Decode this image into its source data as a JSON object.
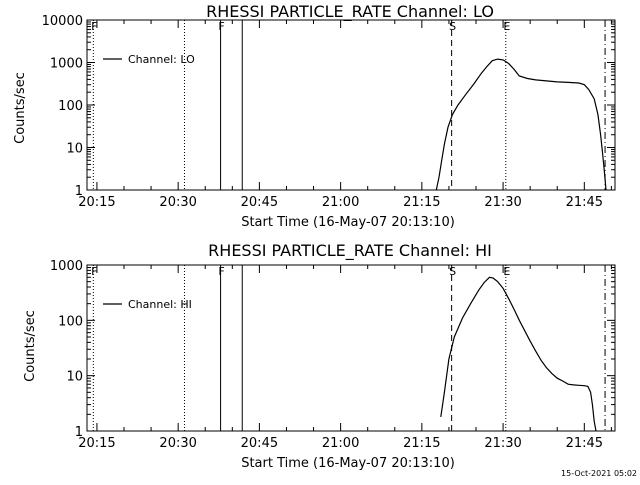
{
  "footer_timestamp": "15-Oct-2021 05:02",
  "chart_data": [
    {
      "type": "line",
      "title": "RHESSI PARTICLE_RATE Channel: LO",
      "xlabel": "Start Time (16-May-07 20:13:10)",
      "ylabel": "Counts/sec",
      "y_scale": "log",
      "xlim": [
        "20:13:10",
        "21:50:40"
      ],
      "ylim": [
        1,
        10000
      ],
      "x_ticks": [
        "20:15",
        "20:30",
        "20:45",
        "21:00",
        "21:15",
        "21:30",
        "21:45"
      ],
      "y_ticks": [
        "1",
        "10",
        "100",
        "1000",
        "10000"
      ],
      "legend": {
        "placement": "top-left",
        "entries": [
          "Channel: LO"
        ]
      },
      "series": [
        {
          "name": "Channel: LO",
          "x": [
            "21:17:40",
            "21:18:10",
            "21:18:40",
            "21:19:10",
            "21:19:50",
            "21:20:40",
            "21:21:40",
            "21:23:00",
            "21:24:40",
            "21:26:00",
            "21:27:00",
            "21:28:00",
            "21:29:00",
            "21:30:00",
            "21:31:00",
            "21:32:00",
            "21:33:00",
            "21:34:30",
            "21:36:00",
            "21:38:00",
            "21:40:00",
            "21:42:00",
            "21:44:00",
            "21:45:00",
            "21:45:50",
            "21:46:50",
            "21:47:30",
            "21:48:00",
            "21:48:20",
            "21:48:40",
            "21:49:00"
          ],
          "y": [
            1,
            2,
            5,
            12,
            30,
            60,
            100,
            170,
            320,
            560,
            800,
            1100,
            1200,
            1150,
            950,
            700,
            480,
            420,
            390,
            370,
            350,
            340,
            330,
            300,
            230,
            140,
            60,
            20,
            8,
            3,
            1
          ]
        }
      ],
      "markers": [
        {
          "label": "F",
          "time": "20:14:20",
          "style": "dotted"
        },
        {
          "label": "",
          "time": "20:31:10",
          "style": "dotted"
        },
        {
          "label": "F",
          "time": "20:37:50",
          "style": "solid"
        },
        {
          "label": "",
          "time": "20:41:50",
          "style": "solid"
        },
        {
          "label": "S",
          "time": "21:20:30",
          "style": "dashed"
        },
        {
          "label": "E",
          "time": "21:30:30",
          "style": "dotted"
        },
        {
          "label": "",
          "time": "21:48:50",
          "style": "dash-dot"
        }
      ]
    },
    {
      "type": "line",
      "title": "RHESSI PARTICLE_RATE Channel: HI",
      "xlabel": "Start Time (16-May-07 20:13:10)",
      "ylabel": "Counts/sec",
      "y_scale": "log",
      "xlim": [
        "20:13:10",
        "21:50:40"
      ],
      "ylim": [
        1,
        1000
      ],
      "x_ticks": [
        "20:15",
        "20:30",
        "20:45",
        "21:00",
        "21:15",
        "21:30",
        "21:45"
      ],
      "y_ticks": [
        "1",
        "10",
        "100",
        "1000"
      ],
      "legend": {
        "placement": "top-left",
        "entries": [
          "Channel: HI"
        ]
      },
      "series": [
        {
          "name": "Channel: HI",
          "x": [
            "21:18:30",
            "21:19:10",
            "21:20:00",
            "21:21:00",
            "21:22:30",
            "21:24:00",
            "21:25:30",
            "21:26:30",
            "21:27:30",
            "21:28:10",
            "21:29:00",
            "21:30:00",
            "21:31:00",
            "21:32:00",
            "21:33:00",
            "21:34:00",
            "21:35:00",
            "21:36:00",
            "21:37:00",
            "21:38:00",
            "21:39:00",
            "21:40:00",
            "21:41:00",
            "21:42:00",
            "21:43:00",
            "21:44:00",
            "21:45:00",
            "21:45:40",
            "21:46:10",
            "21:46:30",
            "21:46:50",
            "21:47:10"
          ],
          "y": [
            1.8,
            5,
            20,
            50,
            110,
            200,
            350,
            480,
            600,
            580,
            500,
            380,
            250,
            160,
            100,
            65,
            42,
            28,
            19,
            14,
            11,
            9,
            8,
            7,
            6.8,
            6.7,
            6.6,
            6.4,
            5,
            3,
            1.5,
            1
          ]
        }
      ],
      "markers": [
        {
          "label": "F",
          "time": "20:14:20",
          "style": "dotted"
        },
        {
          "label": "",
          "time": "20:31:10",
          "style": "dotted"
        },
        {
          "label": "F",
          "time": "20:37:50",
          "style": "solid"
        },
        {
          "label": "",
          "time": "20:41:50",
          "style": "solid"
        },
        {
          "label": "S",
          "time": "21:20:30",
          "style": "dashed"
        },
        {
          "label": "E",
          "time": "21:30:30",
          "style": "dotted"
        },
        {
          "label": "",
          "time": "21:48:50",
          "style": "dash-dot"
        }
      ]
    }
  ]
}
